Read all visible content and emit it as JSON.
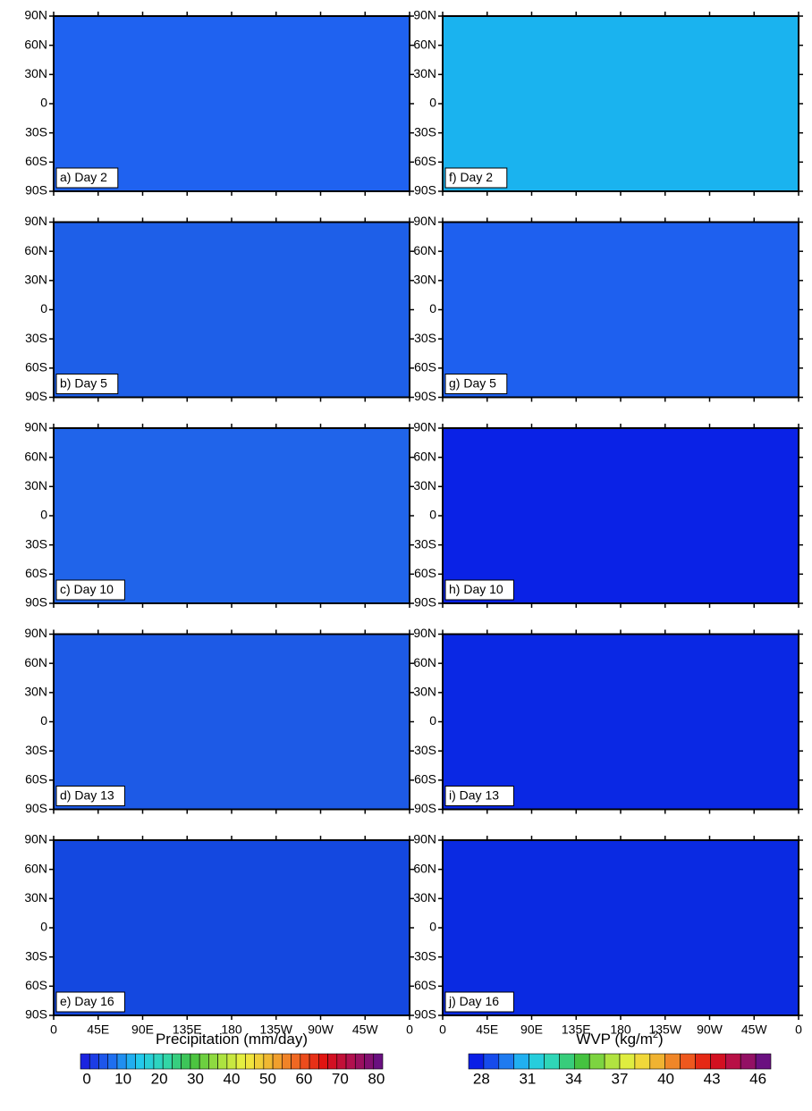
{
  "figure": {
    "y_tick_labels": [
      "90N",
      "60N",
      "30N",
      "0",
      "30S",
      "60S",
      "90S"
    ],
    "x_tick_labels": [
      "0",
      "45E",
      "90E",
      "135E",
      "180",
      "135W",
      "90W",
      "45W",
      "0"
    ],
    "columns": [
      {
        "panels": [
          {
            "label": "a) Day 2",
            "background": "#1f62f0"
          },
          {
            "label": "b) Day 5",
            "background": "#1e5fe8"
          },
          {
            "label": "c) Day 10",
            "background": "#2064ea"
          },
          {
            "label": "d) Day 13",
            "background": "#1d5ae6"
          },
          {
            "label": "e) Day 16",
            "background": "#1448e0"
          }
        ]
      },
      {
        "panels": [
          {
            "label": "f) Day 2",
            "background": "#1ab3ef"
          },
          {
            "label": "g) Day 5",
            "background": "#1e60ef"
          },
          {
            "label": "h) Day 10",
            "background": "#0a22e6"
          },
          {
            "label": "i) Day 13",
            "background": "#0a28e4"
          },
          {
            "label": "j) Day 16",
            "background": "#0a2ae2"
          }
        ]
      }
    ],
    "colorbars": [
      {
        "title": "Precipitation (mm/day)",
        "ticks": [
          "0",
          "10",
          "20",
          "30",
          "40",
          "50",
          "60",
          "70",
          "80"
        ],
        "boxes": 33,
        "colors": [
          "#1b24e0",
          "#1e6cf0",
          "#22c8f0",
          "#30d8b0",
          "#40c040",
          "#a0e040",
          "#f0f040",
          "#f0b030",
          "#f06020",
          "#e01010",
          "#b01050",
          "#6a1080"
        ]
      },
      {
        "title": "WVP (kg/m",
        "title_superscript": "2",
        "title_end": ")",
        "ticks": [
          "28",
          "31",
          "34",
          "37",
          "40",
          "43",
          "46"
        ],
        "boxes": 20,
        "colors": [
          "#0a1ee6",
          "#1e6cf0",
          "#22c8f0",
          "#30d8b0",
          "#40c040",
          "#a0e040",
          "#f0f040",
          "#f0b030",
          "#f06020",
          "#e01010",
          "#b01050",
          "#6a1080"
        ]
      }
    ]
  }
}
